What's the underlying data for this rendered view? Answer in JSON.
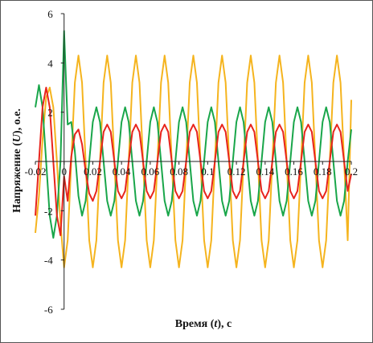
{
  "chart_data": {
    "type": "line",
    "title": "",
    "xlabel_parts": [
      "Время (",
      "t",
      "), с"
    ],
    "ylabel_parts": [
      "Напряжение (",
      "U",
      "), о.е."
    ],
    "xlim": [
      -0.02,
      0.2
    ],
    "ylim": [
      -6,
      6
    ],
    "x_ticks": [
      -0.02,
      0,
      0.02,
      0.04,
      0.06,
      0.08,
      0.1,
      0.12,
      0.14,
      0.16,
      0.18,
      0.2
    ],
    "x_tick_labels": [
      "-0.02",
      "0",
      "0.02",
      "0.04",
      "0.06",
      "0.08",
      "0.1",
      "0.12",
      "0.14",
      "0.16",
      "0.18",
      "0.2"
    ],
    "y_ticks": [
      -6,
      -4,
      -2,
      0,
      2,
      4,
      6
    ],
    "y_tick_labels": [
      "-6",
      "-4",
      "-2",
      "",
      "2",
      "4",
      "6"
    ],
    "grid": false,
    "legend": "none",
    "series": [
      {
        "color": "#f5b41e",
        "sample_step": 0.0025,
        "x_start": -0.02,
        "values": [
          -2.9,
          -1.4,
          0.9,
          2.6,
          3.0,
          2.2,
          0.0,
          -2.5,
          -4.3,
          -3.2,
          0.0,
          3.2,
          4.3,
          3.2,
          0.0,
          -3.2,
          -4.3,
          -3.2,
          0.0,
          3.2,
          4.3,
          3.2,
          0.0,
          -3.2,
          -4.3,
          -3.2,
          0.0,
          3.2,
          4.3,
          3.2,
          0.0,
          -3.2,
          -4.3,
          -3.2,
          0.0,
          3.2,
          4.3,
          3.2,
          0.0,
          -3.2,
          -4.3,
          -3.2,
          0.0,
          3.2,
          4.3,
          3.2,
          0.0,
          -3.2,
          -4.3,
          -3.2,
          0.0,
          3.2,
          4.3,
          3.2,
          0.0,
          -3.2,
          -4.3,
          -3.2,
          0.0,
          3.2,
          4.3,
          3.2,
          0.0,
          -3.2,
          -4.3,
          -3.2,
          0.0,
          3.2,
          4.3,
          3.2,
          0.0,
          -3.2,
          -4.3,
          -3.2,
          0.0,
          3.2,
          4.3,
          3.2,
          0.0,
          -3.2,
          -4.3,
          -3.2,
          0.0,
          3.2,
          4.3,
          3.2,
          0.0,
          -3.2,
          2.5
        ]
      },
      {
        "color": "#19a64a",
        "sample_step": 0.0025,
        "x_start": -0.02,
        "values": [
          2.2,
          3.1,
          2.2,
          0.0,
          -2.2,
          -3.1,
          -2.2,
          0.0,
          5.3,
          1.5,
          1.6,
          0.4,
          -1.4,
          -2.2,
          -1.6,
          0.0,
          1.6,
          2.2,
          1.6,
          0.0,
          -1.6,
          -2.2,
          -1.6,
          0.0,
          1.6,
          2.2,
          1.6,
          0.0,
          -1.6,
          -2.2,
          -1.6,
          0.0,
          1.6,
          2.2,
          1.6,
          0.0,
          -1.6,
          -2.2,
          -1.6,
          0.0,
          1.6,
          2.2,
          1.6,
          0.0,
          -1.6,
          -2.2,
          -1.6,
          0.0,
          1.6,
          2.2,
          1.6,
          0.0,
          -1.6,
          -2.2,
          -1.6,
          0.0,
          1.6,
          2.2,
          1.6,
          0.0,
          -1.6,
          -2.2,
          -1.6,
          0.0,
          1.6,
          2.2,
          1.6,
          0.0,
          -1.6,
          -2.2,
          -1.6,
          0.0,
          1.6,
          2.2,
          1.6,
          0.0,
          -1.6,
          -2.2,
          -1.6,
          0.0,
          1.6,
          2.2,
          1.6,
          0.0,
          -1.6,
          -2.2,
          -1.6,
          0.0,
          1.3
        ]
      },
      {
        "color": "#e8241c",
        "sample_step": 0.0025,
        "x_start": -0.02,
        "values": [
          -2.2,
          0.0,
          2.2,
          3.0,
          2.2,
          0.0,
          -2.2,
          -3.0,
          -0.6,
          -1.6,
          0.2,
          1.1,
          1.3,
          0.7,
          -0.4,
          -1.3,
          -1.6,
          -1.2,
          0.0,
          1.2,
          1.5,
          1.2,
          0.0,
          -1.2,
          -1.5,
          -1.2,
          0.0,
          1.2,
          1.5,
          1.2,
          0.0,
          -1.2,
          -1.5,
          -1.2,
          0.0,
          1.2,
          1.5,
          1.2,
          0.0,
          -1.2,
          -1.5,
          -1.2,
          0.0,
          1.2,
          1.5,
          1.2,
          0.0,
          -1.2,
          -1.5,
          -1.2,
          0.0,
          1.2,
          1.5,
          1.2,
          0.0,
          -1.2,
          -1.5,
          -1.2,
          0.0,
          1.2,
          1.5,
          1.2,
          0.0,
          -1.2,
          -1.5,
          -1.2,
          0.0,
          1.2,
          1.5,
          1.2,
          0.0,
          -1.2,
          -1.5,
          -1.2,
          0.0,
          1.2,
          1.5,
          1.2,
          0.0,
          -1.2,
          -1.5,
          -1.2,
          0.0,
          1.2,
          1.5,
          1.2,
          0.0,
          -1.2,
          -0.5
        ]
      }
    ]
  }
}
